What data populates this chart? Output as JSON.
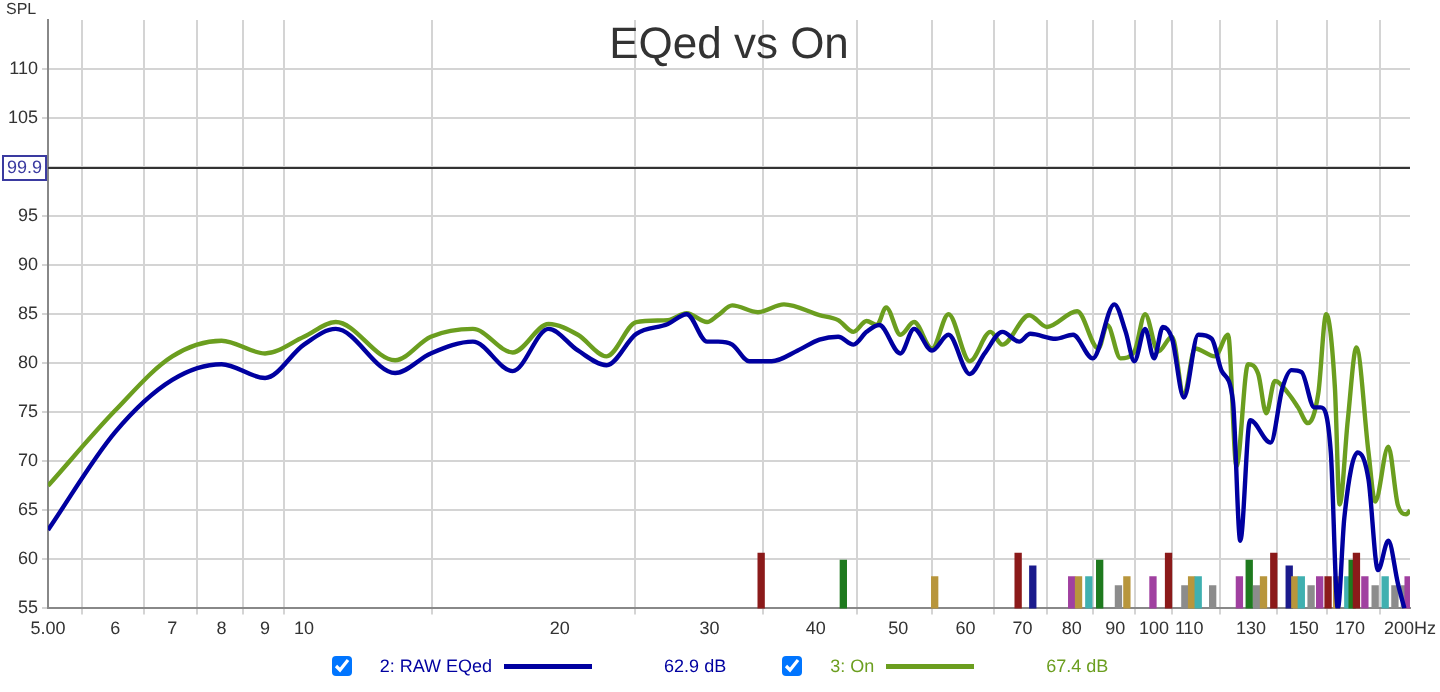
{
  "chart_data": {
    "type": "line",
    "title": "EQed vs On",
    "ylabel": "SPL",
    "annotations": [
      "62.9 dB",
      "67.4 dB"
    ],
    "log": "x",
    "grid": true,
    "legend": "bottom",
    "marker": "none",
    "line_style": "solid",
    "xlim": [
      5,
      200
    ],
    "xticks": [
      {
        "value": 5,
        "label": "5.00"
      },
      6,
      7,
      8,
      9,
      10,
      20,
      30,
      40,
      50,
      60,
      70,
      80,
      90,
      100,
      110,
      130,
      150,
      170,
      {
        "value": 200,
        "label": "200Hz"
      }
    ],
    "ylim": [
      55,
      115
    ],
    "yticks": [
      55,
      60,
      65,
      70,
      75,
      80,
      85,
      90,
      95,
      {
        "value": 100,
        "label": null
      },
      105,
      110
    ],
    "ref_lines": [
      {
        "axis": "y",
        "value": 99.9,
        "label": "99.9",
        "color": "#333333"
      }
    ],
    "series": [
      {
        "name": "2: RAW EQed",
        "color": "#0000a0",
        "x": [
          5,
          6,
          7,
          8,
          9,
          10,
          10.9,
          12.8,
          14.1,
          15.8,
          17.6,
          19.4,
          21,
          22.7,
          24.6,
          26.8,
          28.2,
          29.8,
          30.7,
          31.9,
          33.4,
          35.5,
          38.1,
          40.4,
          42.5,
          44.3,
          45.9,
          47.5,
          50.3,
          52.2,
          54.8,
          57.3,
          60.7,
          63.2,
          66.3,
          69.4,
          71.5,
          76.6,
          80.3,
          84.7,
          89.8,
          92.6,
          94.8,
          97.6,
          100,
          102.4,
          105,
          108.4,
          112.7,
          116.9,
          120.1,
          123.8,
          126.3,
          129.7,
          137.1,
          141.6,
          145.1,
          149.1,
          154.3,
          157,
          161.4,
          164.5,
          167.4,
          173.6,
          178.7,
          183.4,
          188.6,
          193.6,
          197
        ],
        "values": [
          63,
          73,
          78.3,
          79.9,
          78.5,
          81.9,
          83.5,
          79,
          81,
          82.2,
          79.2,
          83.5,
          81.3,
          79.8,
          83,
          84,
          85,
          82.2,
          82.2,
          81.9,
          80.2,
          80.2,
          81.3,
          82.4,
          82.7,
          81.9,
          83.2,
          83.9,
          81,
          83.5,
          81.3,
          82.9,
          78.9,
          81,
          83.2,
          82.2,
          83,
          82.5,
          82.9,
          80.5,
          86,
          83.2,
          80.2,
          83.5,
          80.5,
          83.7,
          82.5,
          76.5,
          82.9,
          82.5,
          79.2,
          76.2,
          61.9,
          74.2,
          71.9,
          77.5,
          79.3,
          79.1,
          75.5,
          75.5,
          70.9,
          55,
          64.2,
          70.9,
          68.2,
          58.9,
          61.9,
          57.5,
          55
        ]
      },
      {
        "name": "3: On",
        "color": "#6b9e1f",
        "x": [
          5,
          6,
          7,
          8,
          9,
          10,
          10.9,
          12.8,
          14.1,
          15.8,
          17.6,
          19.4,
          21,
          22.7,
          24.6,
          26.8,
          28.2,
          29.8,
          30.7,
          31.9,
          34.2,
          36.7,
          40.4,
          42.5,
          44.3,
          45.9,
          47.2,
          48.4,
          50.3,
          52.2,
          54.8,
          57.3,
          60.7,
          64.2,
          66.3,
          71.3,
          74.8,
          81.2,
          86,
          88.1,
          91.3,
          94.8,
          97.6,
          101.1,
          105,
          108.4,
          111.7,
          117.9,
          122.2,
          125,
          129,
          132.6,
          135.5,
          138.7,
          143.9,
          147.7,
          151.7,
          156,
          159.4,
          163.2,
          165.3,
          169,
          173,
          178.7,
          182,
          188.6,
          193.6,
          198,
          200
        ],
        "values": [
          67.5,
          75.2,
          80.7,
          82.3,
          81,
          82.7,
          84.2,
          80.3,
          82.7,
          83.5,
          81.1,
          84,
          82.9,
          80.7,
          84.2,
          84.4,
          85.1,
          84.2,
          84.9,
          85.9,
          85.2,
          86,
          84.9,
          84.4,
          83.2,
          84.3,
          83.9,
          85.7,
          82.9,
          84.2,
          81.5,
          85,
          80.2,
          83.2,
          81.9,
          84.9,
          83.7,
          85.3,
          81.5,
          83.9,
          80.5,
          81.2,
          85,
          81.2,
          82.7,
          76.7,
          81.5,
          80.7,
          82.9,
          69.5,
          79.9,
          78.9,
          74.9,
          78.2,
          76.9,
          75.5,
          73.9,
          76.9,
          85,
          77.5,
          65.6,
          74.2,
          81.6,
          71,
          65.9,
          71.5,
          65.5,
          64.6,
          65
        ]
      },
      {
        "type": "bar",
        "x": [
          34.5,
          43.1,
          55.2,
          69.2,
          72,
          80,
          81.5,
          83.8,
          86.3,
          90.8,
          92.9,
          99.7,
          104,
          108.7,
          110.7,
          112.7,
          117.2,
          126,
          129.4,
          132,
          134.5,
          138.3,
          144.2,
          146.4,
          149,
          153,
          156.6,
          160.2,
          164,
          169,
          171,
          173,
          177,
          182,
          187,
          192,
          197,
          199
        ],
        "values": [
          60.6,
          59.9,
          58.2,
          60.6,
          59.3,
          58.2,
          58.2,
          58.2,
          59.9,
          57.3,
          58.2,
          58.2,
          60.6,
          57.3,
          58.2,
          58.2,
          57.3,
          58.2,
          59.9,
          57.3,
          58.2,
          60.6,
          59.3,
          58.2,
          58.2,
          57.3,
          58.2,
          58.2,
          58.2,
          58.2,
          59.9,
          60.6,
          58.2,
          57.3,
          58.2,
          57.3,
          57.3,
          58.2
        ],
        "colors": [
          "#8b1a1a",
          "#1e7a1e",
          "#b8963c",
          "#8b1a1a",
          "#1a1a8c",
          "#a040a0",
          "#b8963c",
          "#40b0b0",
          "#1e7a1e",
          "#8c8c8c",
          "#b8963c",
          "#a040a0",
          "#8b1a1a",
          "#8c8c8c",
          "#b8963c",
          "#40b0b0",
          "#8c8c8c",
          "#a040a0",
          "#1e7a1e",
          "#8c8c8c",
          "#b8963c",
          "#8b1a1a",
          "#1a1a8c",
          "#b8963c",
          "#40b0b0",
          "#8c8c8c",
          "#a040a0",
          "#8b1a1a",
          "#b8963c",
          "#40b0b0",
          "#1e7a1e",
          "#8b1a1a",
          "#a040a0",
          "#8c8c8c",
          "#40b0b0",
          "#8c8c8c",
          "#8c8c8c",
          "#a040a0"
        ]
      }
    ]
  }
}
